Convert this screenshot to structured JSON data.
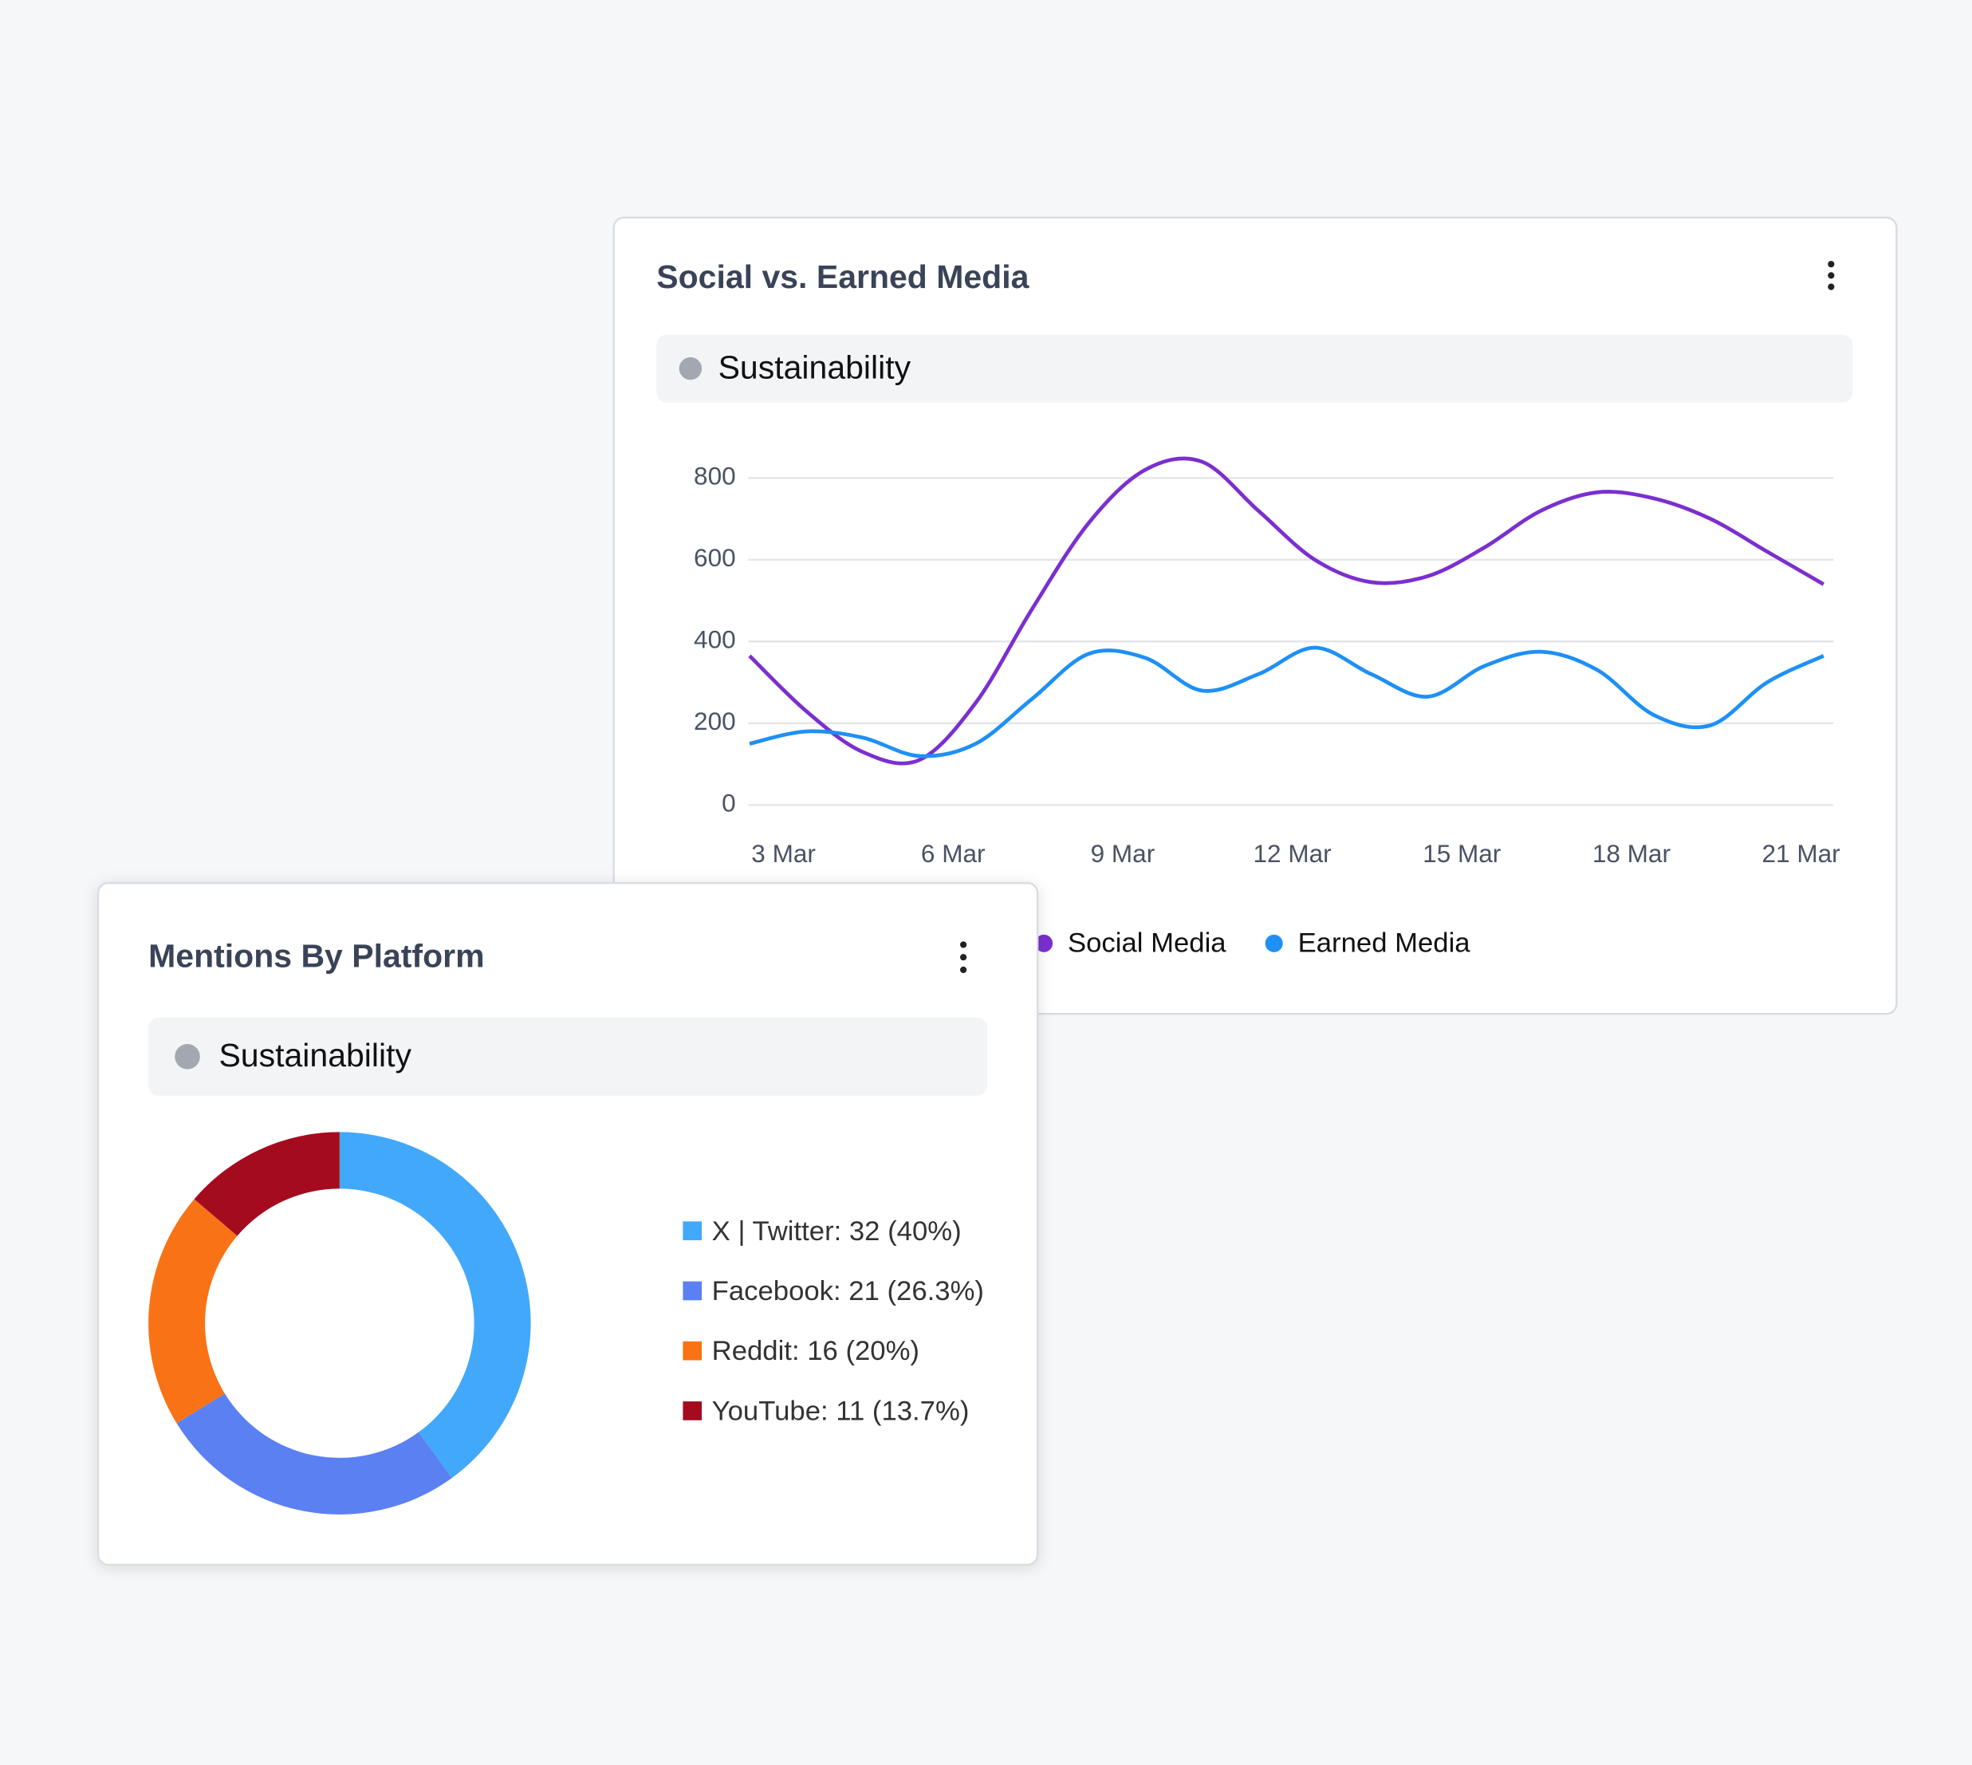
{
  "chart_data": [
    {
      "type": "line",
      "title": "Social vs. Earned Media",
      "filter": "Sustainability",
      "categories": [
        "3 Mar",
        null,
        null,
        "6 Mar",
        null,
        null,
        "9 Mar",
        null,
        null,
        "12 Mar",
        null,
        null,
        "15 Mar",
        null,
        null,
        "18 Mar",
        null,
        null,
        "21 Mar",
        null
      ],
      "series": [
        {
          "name": "Social Media",
          "color": "#7b2fcf",
          "values": [
            365,
            230,
            130,
            110,
            250,
            480,
            690,
            820,
            840,
            720,
            600,
            545,
            560,
            630,
            720,
            765,
            750,
            700,
            620,
            540
          ]
        },
        {
          "name": "Earned Media",
          "color": "#1e90f5",
          "values": [
            150,
            180,
            165,
            120,
            150,
            260,
            370,
            360,
            280,
            320,
            385,
            320,
            265,
            340,
            375,
            330,
            220,
            195,
            300,
            365
          ]
        }
      ],
      "ylim": [
        0,
        800
      ],
      "yticks": [
        0,
        200,
        400,
        600,
        800
      ],
      "grid": true
    },
    {
      "type": "donut",
      "title": "Mentions By Platform",
      "filter": "Sustainability",
      "labels": [
        "X | Twitter: 32 (40%)",
        "Facebook: 21 (26.3%)",
        "Reddit: 16 (20%)",
        "YouTube: 11 (13.7%)"
      ],
      "values": [
        32,
        21,
        16,
        11
      ],
      "colors": [
        "#42a8fa",
        "#5b80f2",
        "#f97316",
        "#a50b1e"
      ]
    }
  ]
}
